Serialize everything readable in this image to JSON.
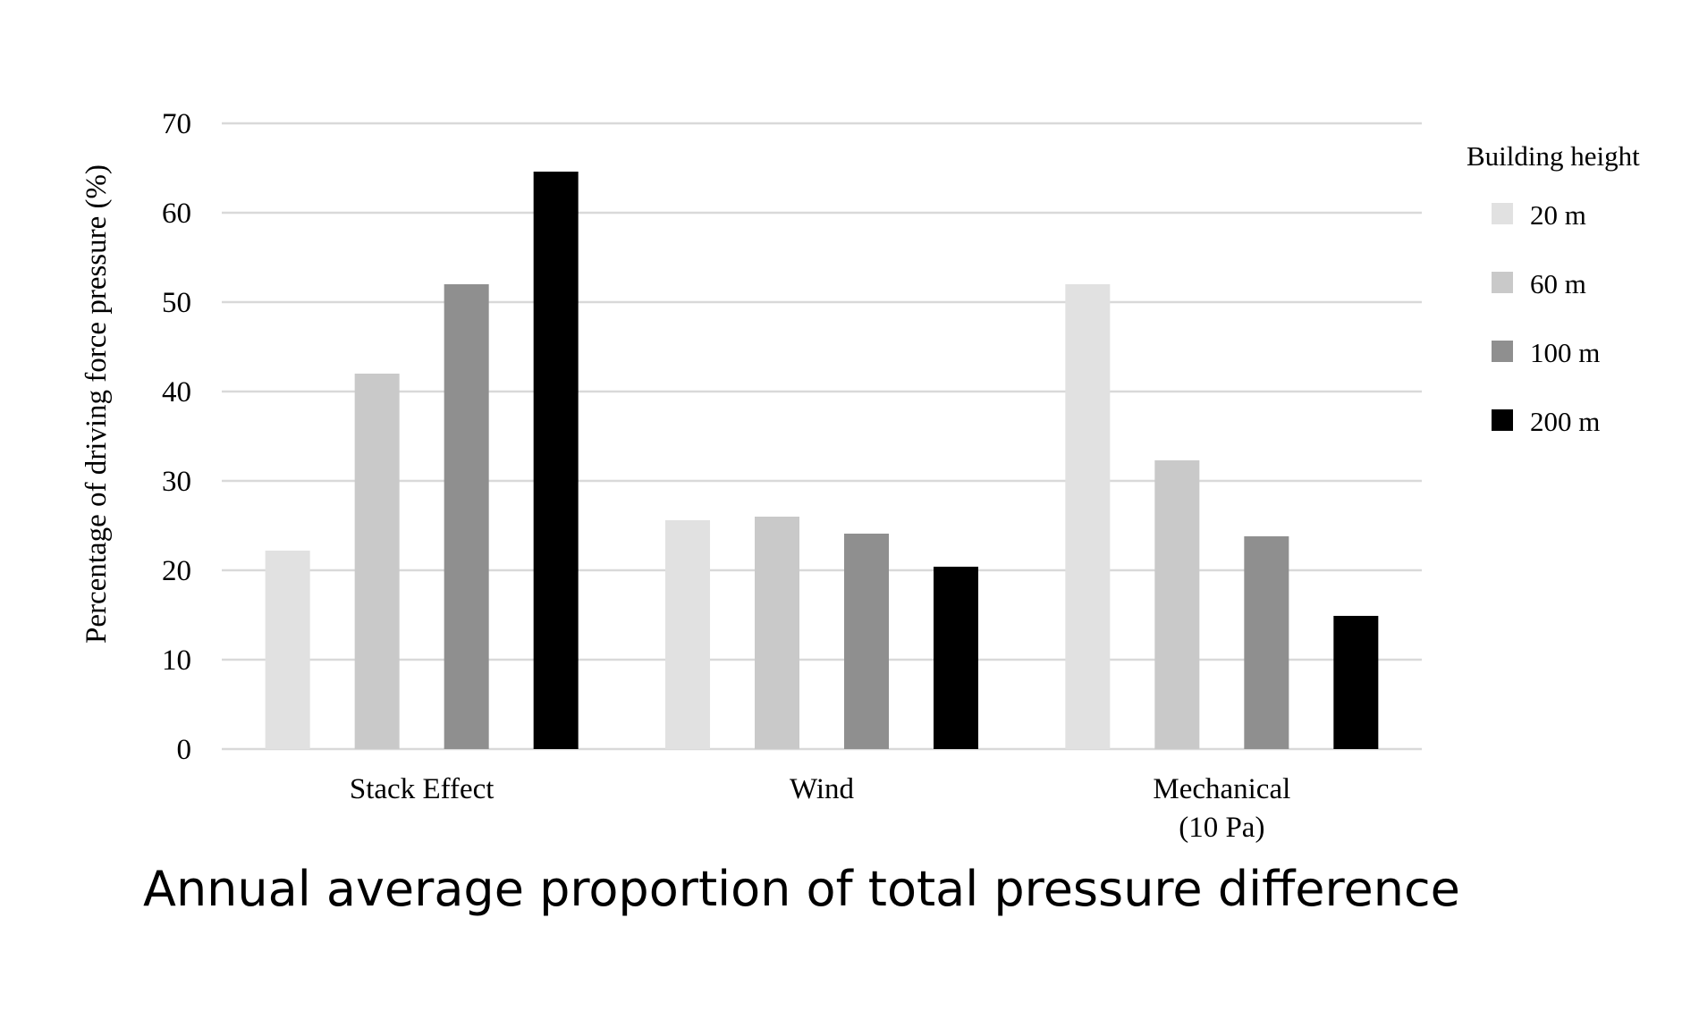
{
  "chart_data": {
    "type": "bar",
    "categories": [
      "Stack Effect",
      "Wind",
      "Mechanical\n(10 Pa)"
    ],
    "series": [
      {
        "name": "20 m",
        "values": [
          22.2,
          25.6,
          52
        ],
        "color": "#e1e1e1"
      },
      {
        "name": "60 m",
        "values": [
          42,
          26,
          32.3
        ],
        "color": "#c9c9c9"
      },
      {
        "name": "100 m",
        "values": [
          52,
          24.1,
          23.8
        ],
        "color": "#8f8f8f"
      },
      {
        "name": "200 m",
        "values": [
          64.6,
          20.4,
          14.9
        ],
        "color": "#000000"
      }
    ],
    "ylabel": "Percentage of driving force pressure (%)",
    "ylim": [
      0,
      70
    ],
    "yticks": [
      0,
      10,
      20,
      30,
      40,
      50,
      60,
      70
    ],
    "grid": true,
    "gridline_color": "#d9d9d9",
    "legend_title": "Building height",
    "legend_position": "right"
  },
  "caption": "Annual average proportion of total pressure difference"
}
